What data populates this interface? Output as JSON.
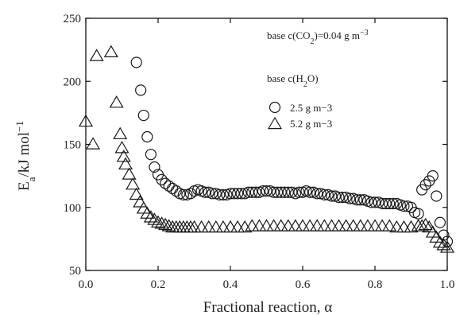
{
  "chart_data": {
    "type": "scatter",
    "title": "",
    "xlabel": "Fractional reaction, α",
    "ylabel": "Ea/kJ mol−1",
    "xlim": [
      0.0,
      1.0
    ],
    "ylim": [
      50,
      250
    ],
    "xticks": [
      "0.0",
      "0.2",
      "0.4",
      "0.6",
      "0.8",
      "1.0"
    ],
    "yticks": [
      "50",
      "100",
      "150",
      "200",
      "250"
    ],
    "grid": false,
    "annotation": "base c(CO2)=0.04 g m−3",
    "legend_title": "base c(H2O)",
    "legend_position": "upper-right",
    "series": [
      {
        "name": "2.5 g m−3",
        "marker": "circle",
        "x": [
          0.14,
          0.152,
          0.16,
          0.17,
          0.18,
          0.19,
          0.2,
          0.21,
          0.22,
          0.23,
          0.24,
          0.25,
          0.26,
          0.27,
          0.28,
          0.29,
          0.3,
          0.31,
          0.32,
          0.33,
          0.34,
          0.35,
          0.36,
          0.37,
          0.38,
          0.39,
          0.4,
          0.41,
          0.42,
          0.43,
          0.44,
          0.45,
          0.46,
          0.47,
          0.48,
          0.49,
          0.5,
          0.51,
          0.52,
          0.53,
          0.54,
          0.55,
          0.56,
          0.57,
          0.58,
          0.59,
          0.6,
          0.61,
          0.62,
          0.63,
          0.64,
          0.65,
          0.66,
          0.67,
          0.68,
          0.69,
          0.7,
          0.71,
          0.72,
          0.73,
          0.74,
          0.75,
          0.76,
          0.77,
          0.78,
          0.79,
          0.8,
          0.81,
          0.82,
          0.83,
          0.84,
          0.85,
          0.86,
          0.87,
          0.88,
          0.89,
          0.9,
          0.91,
          0.92,
          0.93,
          0.94,
          0.95,
          0.96,
          0.97,
          0.98,
          0.99,
          1.0
        ],
        "y": [
          215,
          193,
          173,
          156,
          142,
          132,
          126,
          122,
          119,
          117,
          115,
          113,
          111,
          110,
          110,
          111,
          113,
          114,
          113,
          112,
          112,
          111,
          111,
          110,
          110,
          110,
          111,
          111,
          111,
          111,
          111,
          112,
          112,
          112,
          112,
          113,
          113,
          113,
          112,
          112,
          112,
          112,
          112,
          112,
          111,
          112,
          112,
          113,
          112,
          112,
          111,
          111,
          110,
          110,
          109,
          109,
          108,
          108,
          108,
          107,
          107,
          106,
          106,
          106,
          105,
          104,
          104,
          104,
          103,
          103,
          103,
          103,
          103,
          102,
          101,
          101,
          100,
          96,
          95,
          114,
          118,
          121,
          125,
          109,
          88,
          78,
          73
        ]
      },
      {
        "name": "5.2 g m−3",
        "marker": "triangle",
        "x": [
          0.0,
          0.02,
          0.03,
          0.07,
          0.085,
          0.095,
          0.1,
          0.105,
          0.11,
          0.12,
          0.13,
          0.14,
          0.15,
          0.16,
          0.17,
          0.18,
          0.19,
          0.2,
          0.21,
          0.22,
          0.23,
          0.24,
          0.25,
          0.26,
          0.27,
          0.28,
          0.29,
          0.3,
          0.32,
          0.34,
          0.36,
          0.38,
          0.4,
          0.42,
          0.44,
          0.46,
          0.48,
          0.5,
          0.52,
          0.54,
          0.56,
          0.58,
          0.6,
          0.62,
          0.64,
          0.66,
          0.68,
          0.7,
          0.72,
          0.74,
          0.76,
          0.78,
          0.8,
          0.82,
          0.84,
          0.86,
          0.88,
          0.9,
          0.92,
          0.93,
          0.94,
          0.95,
          0.96,
          0.97,
          0.98,
          0.99,
          1.0
        ],
        "y": [
          168,
          150,
          220,
          223,
          183,
          158,
          147,
          140,
          134,
          126,
          118,
          110,
          104,
          99,
          95,
          92,
          90,
          88,
          87,
          86,
          85,
          84,
          84,
          84,
          84,
          84,
          84,
          84,
          84,
          84,
          84,
          84,
          84,
          84,
          84,
          85,
          85,
          85,
          85,
          85,
          85,
          85,
          85,
          85,
          85,
          85,
          85,
          85,
          85,
          85,
          85,
          85,
          85,
          85,
          85,
          84,
          84,
          84,
          85,
          85,
          86,
          84,
          80,
          76,
          72,
          70,
          68
        ]
      }
    ]
  }
}
